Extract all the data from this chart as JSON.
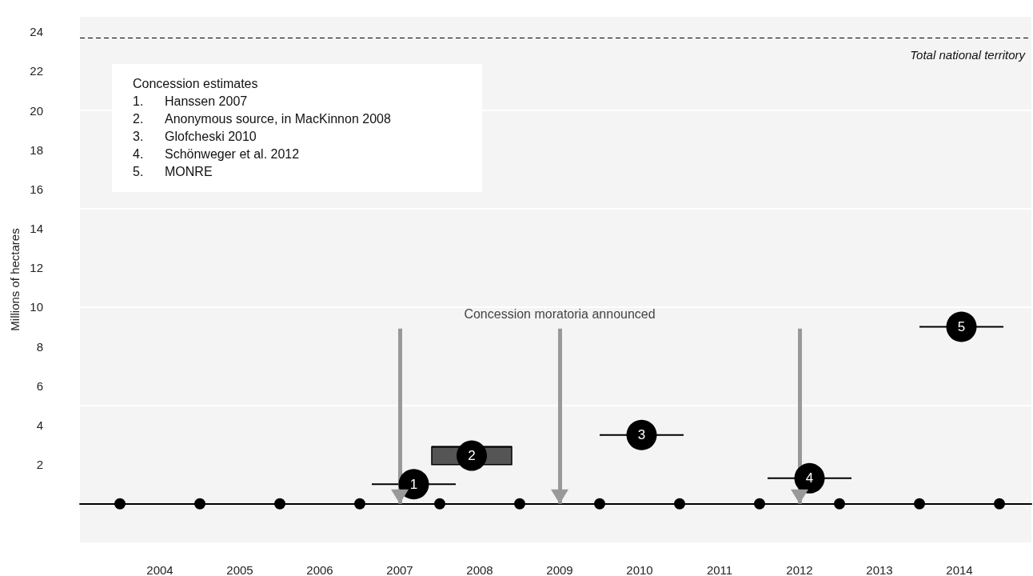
{
  "chart_data": {
    "type": "line",
    "ylabel": "Millions of hectares",
    "grid": "y",
    "xlim": [
      2003.5,
      2015.4
    ],
    "xticks": [
      {
        "value": 2004,
        "label": null
      },
      {
        "value": 2004.5,
        "label": "2004"
      },
      {
        "value": 2005,
        "label": null
      },
      {
        "value": 2005.5,
        "label": "2005"
      },
      {
        "value": 2006,
        "label": null
      },
      {
        "value": 2006.5,
        "label": "2006"
      },
      {
        "value": 2007,
        "label": null
      },
      {
        "value": 2007.5,
        "label": "2007"
      },
      {
        "value": 2008,
        "label": null
      },
      {
        "value": 2008.5,
        "label": "2008"
      },
      {
        "value": 2009,
        "label": null
      },
      {
        "value": 2009.5,
        "label": "2009"
      },
      {
        "value": 2010,
        "label": null
      },
      {
        "value": 2010.5,
        "label": "2010"
      },
      {
        "value": 2011,
        "label": null
      },
      {
        "value": 2011.5,
        "label": "2011"
      },
      {
        "value": 2012,
        "label": null
      },
      {
        "value": 2012.5,
        "label": "2012"
      },
      {
        "value": 2013,
        "label": null
      },
      {
        "value": 2013.5,
        "label": "2013"
      },
      {
        "value": 2014,
        "label": null
      },
      {
        "value": 2014.5,
        "label": "2014"
      },
      {
        "value": 2015,
        "label": null
      }
    ],
    "ylim": [
      -2,
      24.8
    ],
    "yticks": [
      2,
      4,
      6,
      8,
      10,
      12,
      14,
      16,
      18,
      20,
      22,
      24
    ],
    "series": [
      {
        "name": "1",
        "color": "#000000",
        "x": [
          2007.15,
          2008.2
        ],
        "values": [
          1.0,
          1.0
        ]
      },
      {
        "name": "2",
        "color": "#000000",
        "x": [
          2007.9,
          2008.9
        ],
        "values": [
          2.9,
          2.9
        ],
        "lower": [
          2.0,
          2.0
        ],
        "upper": [
          2.9,
          2.9
        ]
      },
      {
        "name": "3",
        "color": "#000000",
        "x": [
          2010.0,
          2011.05
        ],
        "values": [
          3.5,
          3.5
        ]
      },
      {
        "name": "4",
        "color": "#000000",
        "x": [
          2012.1,
          2013.15
        ],
        "values": [
          1.3,
          1.3
        ]
      },
      {
        "name": "5",
        "color": "#000000",
        "x": [
          2014.0,
          2015.05
        ],
        "values": [
          9.0,
          9.0
        ]
      }
    ],
    "ref_lines": [
      {
        "axis": "y",
        "value": 23.7,
        "label": "Total national territory",
        "color": "#000000",
        "line_style": "dashed"
      },
      {
        "axis": "x",
        "value": 2007.5,
        "label": null,
        "color": "#999999"
      },
      {
        "axis": "x",
        "value": 2009.5,
        "label": null,
        "color": "#999999"
      },
      {
        "axis": "x",
        "value": 2012.5,
        "label": null,
        "color": "#999999"
      }
    ],
    "annotations": [
      "Concession moratoria announced",
      "Concession estimates",
      "1.\tHanssen 2007",
      "2.\tAnonymous source, in MacKinnon 2008",
      "3.\tGlofcheski 2010",
      "4.\tSchönweger et al. 2012",
      "5.\tMONRE"
    ]
  }
}
